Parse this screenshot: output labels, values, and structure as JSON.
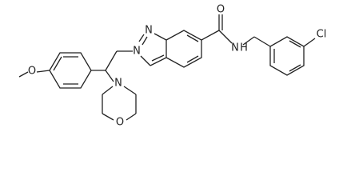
{
  "atoms": [
    {
      "label": "O"
    },
    {
      "label": "N"
    },
    {
      "label": "N"
    },
    {
      "label": "O"
    },
    {
      "label": "N"
    },
    {
      "label": "H"
    },
    {
      "label": "Cl"
    },
    {
      "label": "N"
    },
    {
      "label": "O"
    }
  ]
}
